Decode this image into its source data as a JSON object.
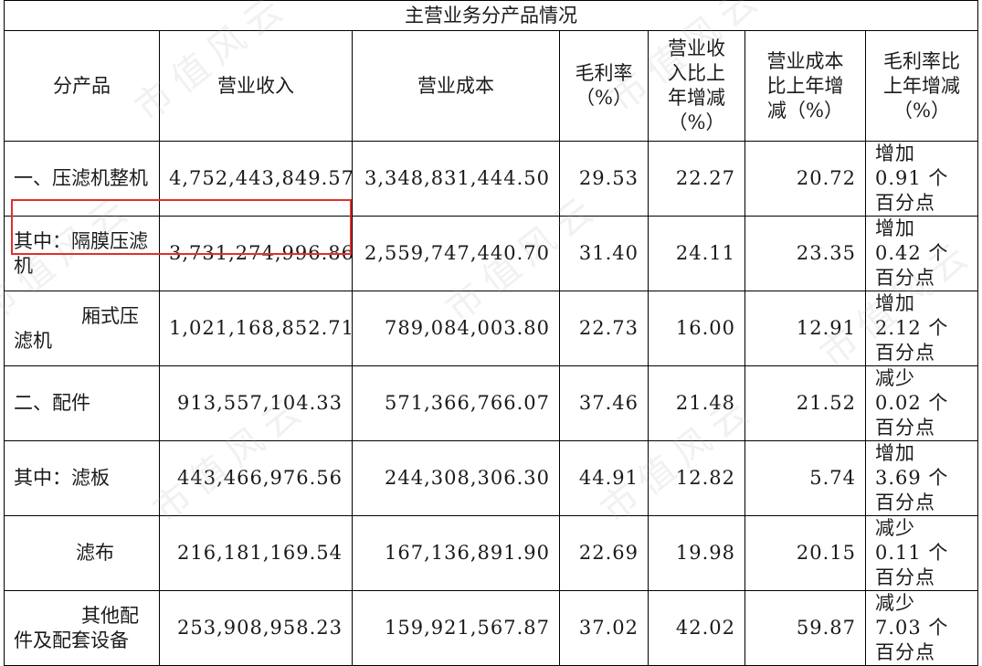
{
  "table": {
    "title": "主营业务分产品情况",
    "headers": {
      "product": "分产品",
      "revenue": "营业收入",
      "cost": "营业成本",
      "margin": [
        "毛利率",
        "（%）"
      ],
      "rev_change": [
        "营业收",
        "入比上",
        "年增减",
        "（%）"
      ],
      "cost_change": [
        "营业成本",
        "比上年增",
        "减（%）"
      ],
      "margin_change": [
        "毛利率比",
        "上年增减",
        "（%）"
      ]
    },
    "rows": [
      {
        "label": "一、压滤机整机",
        "revenue": "4,752,443,849.57",
        "cost": "3,348,831,444.50",
        "margin": "29.53",
        "rev_change": "22.27",
        "cost_change": "20.72",
        "margin_change": "增加 0.91 个百分点"
      },
      {
        "label": "其中：隔膜压滤机",
        "revenue": "3,731,274,996.86",
        "cost": "2,559,747,440.70",
        "margin": "31.40",
        "rev_change": "24.11",
        "cost_change": "23.35",
        "margin_change": "增加 0.42 个百分点"
      },
      {
        "label_head": "厢式压",
        "label_tail": "滤机",
        "revenue": "1,021,168,852.71",
        "cost": "789,084,003.80",
        "margin": "22.73",
        "rev_change": "16.00",
        "cost_change": "12.91",
        "margin_change": "增加 2.12 个百分点"
      },
      {
        "label": "二、配件",
        "revenue": "913,557,104.33",
        "cost": "571,366,766.07",
        "margin": "37.46",
        "rev_change": "21.48",
        "cost_change": "21.52",
        "margin_change": "减少 0.02 个百分点"
      },
      {
        "label": "其中：滤板",
        "revenue": "443,466,976.56",
        "cost": "244,308,306.30",
        "margin": "44.91",
        "rev_change": "12.82",
        "cost_change": "5.74",
        "margin_change": "增加 3.69 个百分点"
      },
      {
        "label_head": "滤布",
        "label_tail": "",
        "revenue": "216,181,169.54",
        "cost": "167,136,891.90",
        "margin": "22.69",
        "rev_change": "19.98",
        "cost_change": "20.15",
        "margin_change": "减少 0.11 个百分点"
      },
      {
        "label_head": "其他配",
        "label_tail": "件及配套设备",
        "revenue": "253,908,958.23",
        "cost": "159,921,567.87",
        "margin": "37.02",
        "rev_change": "42.02",
        "cost_change": "59.87",
        "margin_change": "减少 7.03 个百分点"
      }
    ]
  },
  "watermark": "市值风云",
  "colors": {
    "highlight": "#e0302c",
    "border": "#000000",
    "text": "#1a1a1a"
  }
}
